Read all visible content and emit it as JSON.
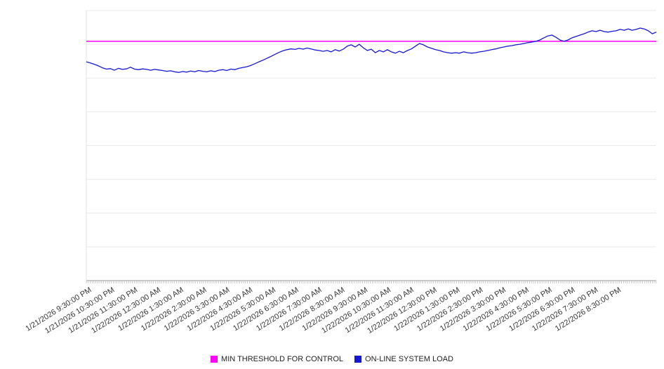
{
  "legend": {
    "items": [
      {
        "label": "MIN THRESHOLD FOR CONTROL",
        "color": "#ff00ff"
      },
      {
        "label": "ON-LINE SYSTEM LOAD",
        "color": "#1717cf"
      }
    ]
  },
  "chart_data": {
    "type": "line",
    "title": "",
    "xlabel": "",
    "ylabel": "",
    "ylim": [
      0,
      100
    ],
    "y_gridline_step": 12.5,
    "y_ticks_labeled": false,
    "grid": "horizontal",
    "legend_position": "bottom-center",
    "x_tick_labels": [
      "1/21/2026 9:30:00 PM",
      "1/21/2026 10:30:00 PM",
      "1/21/2026 11:30:00 PM",
      "1/22/2026 12:30:00 AM",
      "1/22/2026 1:30:00 AM",
      "1/22/2026 2:30:00 AM",
      "1/22/2026 3:30:00 AM",
      "1/22/2026 4:30:00 AM",
      "1/22/2026 5:30:00 AM",
      "1/22/2026 6:30:00 AM",
      "1/22/2026 7:30:00 AM",
      "1/22/2026 8:30:00 AM",
      "1/22/2026 9:30:00 AM",
      "1/22/2026 10:30:00 AM",
      "1/22/2026 11:30:00 AM",
      "1/22/2026 12:30:00 PM",
      "1/22/2026 1:30:00 PM",
      "1/22/2026 2:30:00 PM",
      "1/22/2026 3:30:00 PM",
      "1/22/2026 4:30:00 PM",
      "1/22/2026 5:30:00 PM",
      "1/22/2026 6:30:00 PM",
      "1/22/2026 7:30:00 PM",
      "1/22/2026 8:30:00 PM"
    ],
    "series": [
      {
        "name": "MIN THRESHOLD FOR CONTROL",
        "type": "threshold",
        "color": "#ff00ff",
        "value": 88.6
      },
      {
        "name": "ON-LINE SYSTEM LOAD",
        "type": "line",
        "color": "#1717cf",
        "values": [
          81.0,
          80.6,
          80.1,
          79.5,
          78.8,
          78.3,
          78.5,
          77.9,
          78.6,
          78.2,
          78.4,
          79.0,
          78.3,
          78.1,
          78.4,
          78.2,
          77.9,
          78.2,
          78.0,
          77.8,
          77.5,
          77.7,
          77.3,
          77.1,
          77.4,
          77.2,
          77.6,
          77.3,
          77.8,
          77.5,
          77.3,
          77.7,
          77.4,
          77.9,
          78.1,
          77.8,
          78.3,
          78.1,
          78.6,
          78.9,
          79.2,
          79.7,
          80.3,
          81.0,
          81.6,
          82.3,
          83.0,
          83.8,
          84.5,
          85.1,
          85.5,
          85.8,
          85.6,
          86.0,
          85.7,
          86.1,
          85.8,
          85.4,
          85.2,
          84.9,
          85.2,
          84.7,
          85.5,
          85.0,
          85.7,
          86.8,
          87.3,
          86.5,
          87.5,
          86.2,
          85.2,
          85.7,
          84.4,
          85.2,
          84.7,
          85.5,
          84.7,
          84.2,
          84.9,
          84.4,
          85.2,
          85.8,
          86.8,
          87.8,
          87.3,
          86.5,
          86.0,
          85.5,
          85.2,
          84.7,
          84.4,
          84.2,
          84.4,
          84.2,
          84.7,
          84.4,
          84.2,
          84.4,
          84.7,
          84.9,
          85.2,
          85.5,
          85.8,
          86.2,
          86.5,
          86.8,
          87.0,
          87.3,
          87.5,
          87.8,
          88.1,
          88.3,
          88.6,
          89.1,
          89.9,
          90.6,
          90.9,
          90.1,
          89.1,
          88.6,
          89.1,
          89.9,
          90.4,
          90.9,
          91.4,
          92.0,
          92.5,
          92.2,
          92.7,
          92.2,
          92.0,
          92.3,
          92.5,
          93.0,
          92.7,
          93.2,
          92.7,
          93.0,
          93.5,
          93.2,
          92.5,
          91.4,
          92.0
        ]
      }
    ]
  }
}
